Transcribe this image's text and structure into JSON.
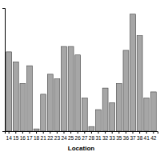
{
  "chart_data": {
    "type": "bar",
    "x_label": "Location",
    "categories": [
      "14",
      "15",
      "16",
      "17",
      "18",
      "21",
      "22",
      "23",
      "24",
      "25",
      "26",
      "27",
      "28",
      "31",
      "32",
      "33",
      "35",
      "36",
      "37",
      "38",
      "41",
      "42"
    ],
    "values": [
      103,
      90,
      62,
      85,
      3,
      48,
      74,
      68,
      110,
      110,
      99,
      43,
      6,
      28,
      56,
      37,
      62,
      105,
      152,
      124,
      43,
      51
    ],
    "color": "#a6a6a6",
    "ylim": [
      0,
      160
    ],
    "yticks": [],
    "grid": false,
    "tick_labels": "x"
  }
}
